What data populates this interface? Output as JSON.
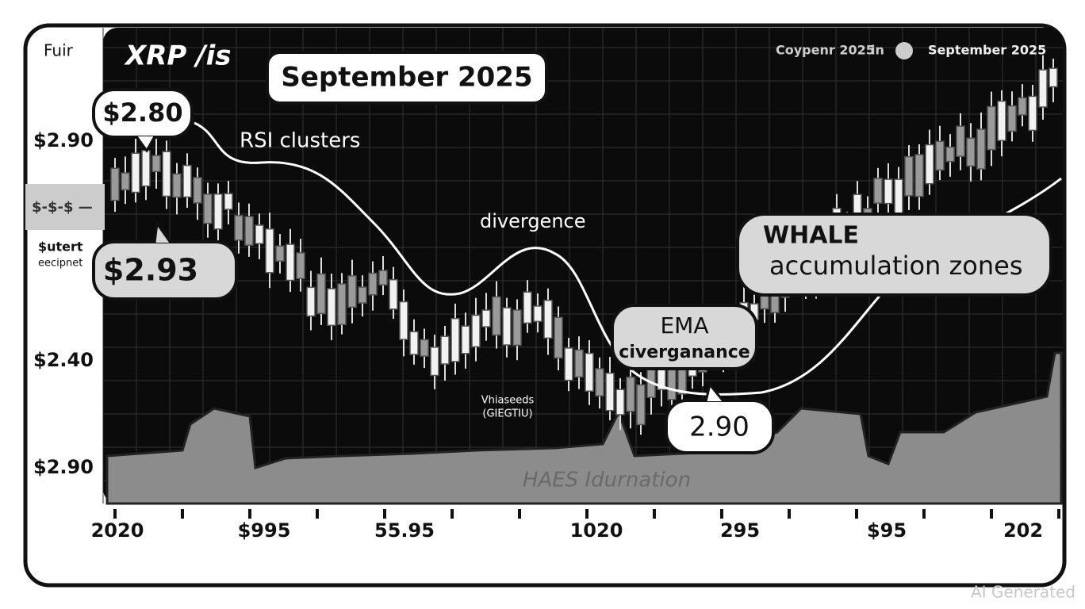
{
  "header": {
    "corner_label": "Fuir",
    "pair": "XRP /is",
    "period_badge": "September 2025",
    "right_text": "Coypenr 2025",
    "right_in": "in",
    "right_date": "September 2025"
  },
  "side_labels": {
    "top_price": "$2.90",
    "box_label": "$-$-$ —",
    "sub_line_1": "$utert",
    "sub_line_2": "eecipnet",
    "mid_price": "$2.40",
    "low_price": "$2.90"
  },
  "callouts": {
    "price_high": "$2.80",
    "price_current": "$2.93",
    "rsi": "RSI clusters",
    "divergence": "divergence",
    "ema_title": "EMA",
    "ema_sub": "civerganance",
    "ema_value": "2.90",
    "whale_title": "WHALE",
    "whale_sub": "accumulation zones",
    "small_1": "Vhiaseeds",
    "small_2": "(GIEGTIU)",
    "faded": "HAES Idurnation"
  },
  "x_labels": [
    "2020",
    "$995",
    "55.95",
    "1020",
    "295",
    "$95",
    "202"
  ],
  "watermark": "AI Generated"
}
